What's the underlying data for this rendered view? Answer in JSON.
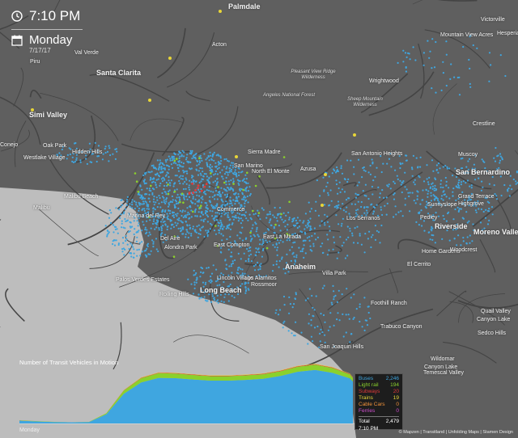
{
  "clock": {
    "time": "7:10 PM",
    "day": "Monday",
    "date": "7/17/17"
  },
  "labels": [
    {
      "text": "Palmdale",
      "cls": "city"
    },
    {
      "text": "Victorville",
      "cls": ""
    },
    {
      "text": "Mountain View Acres",
      "cls": ""
    },
    {
      "text": "Hesperia",
      "cls": ""
    },
    {
      "text": "Acton",
      "cls": ""
    },
    {
      "text": "Val Verde",
      "cls": ""
    },
    {
      "text": "Piru",
      "cls": ""
    },
    {
      "text": "Santa Clarita",
      "cls": "city"
    },
    {
      "text": "Pleasant View Ridge Wilderness",
      "cls": "area"
    },
    {
      "text": "Wrightwood",
      "cls": ""
    },
    {
      "text": "Angeles National Forest",
      "cls": "area"
    },
    {
      "text": "Sheep Mountain Wilderness",
      "cls": "area"
    },
    {
      "text": "Simi Valley",
      "cls": "city"
    },
    {
      "text": "Crestline",
      "cls": ""
    },
    {
      "text": "Oak Park",
      "cls": ""
    },
    {
      "text": "Hidden Hills",
      "cls": ""
    },
    {
      "text": "Conejo",
      "cls": ""
    },
    {
      "text": "Westlake Village",
      "cls": ""
    },
    {
      "text": "Sierra Madre",
      "cls": ""
    },
    {
      "text": "San Marino",
      "cls": ""
    },
    {
      "text": "North El Monte",
      "cls": ""
    },
    {
      "text": "Azusa",
      "cls": ""
    },
    {
      "text": "San Antonio Heights",
      "cls": ""
    },
    {
      "text": "Muscoy",
      "cls": ""
    },
    {
      "text": "San Bernardino",
      "cls": "city"
    },
    {
      "text": "Malibu Beach",
      "cls": ""
    },
    {
      "text": "Malibu",
      "cls": ""
    },
    {
      "text": "Grand Terrace",
      "cls": ""
    },
    {
      "text": "Highgrove",
      "cls": ""
    },
    {
      "text": "Sunnyslope",
      "cls": ""
    },
    {
      "text": "Los Serranos",
      "cls": ""
    },
    {
      "text": "Pedley",
      "cls": ""
    },
    {
      "text": "Riverside",
      "cls": "city"
    },
    {
      "text": "Moreno Valley",
      "cls": "city"
    },
    {
      "text": "Marina del Rey",
      "cls": ""
    },
    {
      "text": "Commerce",
      "cls": ""
    },
    {
      "text": "Del Aire",
      "cls": ""
    },
    {
      "text": "Alondra Park",
      "cls": ""
    },
    {
      "text": "East Compton",
      "cls": ""
    },
    {
      "text": "East La Mirada",
      "cls": ""
    },
    {
      "text": "Home Gardens",
      "cls": ""
    },
    {
      "text": "Woodcrest",
      "cls": ""
    },
    {
      "text": "El Cerrito",
      "cls": ""
    },
    {
      "text": "Anaheim",
      "cls": "city"
    },
    {
      "text": "Villa Park",
      "cls": ""
    },
    {
      "text": "Palos Verdes Estates",
      "cls": ""
    },
    {
      "text": "Lincoln Village",
      "cls": ""
    },
    {
      "text": "Los Alamitos",
      "cls": ""
    },
    {
      "text": "Rossmoor",
      "cls": ""
    },
    {
      "text": "Rolling Hills",
      "cls": ""
    },
    {
      "text": "Long Beach",
      "cls": "city"
    },
    {
      "text": "Foothill Ranch",
      "cls": ""
    },
    {
      "text": "Trabuco Canyon",
      "cls": ""
    },
    {
      "text": "Quail Valley",
      "cls": ""
    },
    {
      "text": "Canyon Lake",
      "cls": ""
    },
    {
      "text": "Sedco Hills",
      "cls": ""
    },
    {
      "text": "San Joaquin Hills",
      "cls": ""
    },
    {
      "text": "Wildomar",
      "cls": ""
    },
    {
      "text": "Temescal Valley",
      "cls": ""
    },
    {
      "text": "Canyon Lake",
      "cls": ""
    }
  ],
  "chart": {
    "title": "Number of Transit Vehicles in Motion",
    "xlabel": "Monday"
  },
  "chart_data": {
    "type": "area",
    "title": "Number of Transit Vehicles in Motion",
    "xlabel": "Monday",
    "ylabel": "",
    "x": [
      0,
      1,
      2,
      3,
      4,
      5,
      6,
      7,
      8,
      9,
      10,
      11,
      12,
      13,
      14,
      15,
      16,
      17,
      18,
      19,
      19.17
    ],
    "ylim": [
      0,
      3300
    ],
    "series": [
      {
        "name": "Buses",
        "color": "#3fa6e0",
        "values": [
          150,
          110,
          80,
          60,
          80,
          500,
          1600,
          2200,
          2450,
          2430,
          2360,
          2300,
          2300,
          2340,
          2400,
          2550,
          2780,
          2880,
          2720,
          2420,
          2246
        ]
      },
      {
        "name": "Light rail",
        "color": "#8bd12c",
        "values": [
          20,
          15,
          5,
          0,
          5,
          50,
          170,
          230,
          250,
          250,
          245,
          240,
          240,
          242,
          245,
          255,
          270,
          275,
          260,
          215,
          194
        ]
      },
      {
        "name": "Subways",
        "color": "#e03b3b",
        "values": [
          4,
          2,
          0,
          0,
          0,
          6,
          16,
          24,
          26,
          26,
          25,
          24,
          24,
          24,
          25,
          26,
          28,
          28,
          27,
          24,
          20
        ]
      },
      {
        "name": "Trains",
        "color": "#e8d638",
        "values": [
          2,
          0,
          0,
          0,
          0,
          4,
          12,
          20,
          22,
          22,
          20,
          20,
          20,
          20,
          21,
          22,
          24,
          25,
          23,
          21,
          19
        ]
      },
      {
        "name": "Cable Cars",
        "color": "#f0923a",
        "values": [
          0,
          0,
          0,
          0,
          0,
          0,
          0,
          0,
          0,
          0,
          0,
          0,
          0,
          0,
          0,
          0,
          0,
          0,
          0,
          0,
          0
        ]
      },
      {
        "name": "Ferries",
        "color": "#cf4fcf",
        "values": [
          0,
          0,
          0,
          0,
          0,
          0,
          0,
          0,
          0,
          0,
          0,
          0,
          0,
          0,
          0,
          0,
          0,
          0,
          0,
          0,
          0
        ]
      }
    ]
  },
  "legend": {
    "items": [
      {
        "label": "Buses",
        "value": "2,246",
        "color": "#3fa6e0"
      },
      {
        "label": "Light rail",
        "value": "194",
        "color": "#8bd12c"
      },
      {
        "label": "Subways",
        "value": "20",
        "color": "#e03b3b"
      },
      {
        "label": "Trains",
        "value": "19",
        "color": "#e8d638"
      },
      {
        "label": "Cable Cars",
        "value": "0",
        "color": "#f0923a"
      },
      {
        "label": "Ferries",
        "value": "0",
        "color": "#cf4fcf"
      }
    ],
    "total_label": "Total",
    "total_value": "2,479",
    "time": "7:10 PM"
  },
  "credits": "© Mapzen | Transitland | Unfolding Maps | Stamen Design",
  "colors": {
    "land": "#5f5f5f",
    "ocean": "#bdbdbd",
    "road": "#444444",
    "bus": "#3fa6e0",
    "rail": "#8bd12c",
    "subway": "#e03b3b",
    "train": "#e8d638"
  }
}
